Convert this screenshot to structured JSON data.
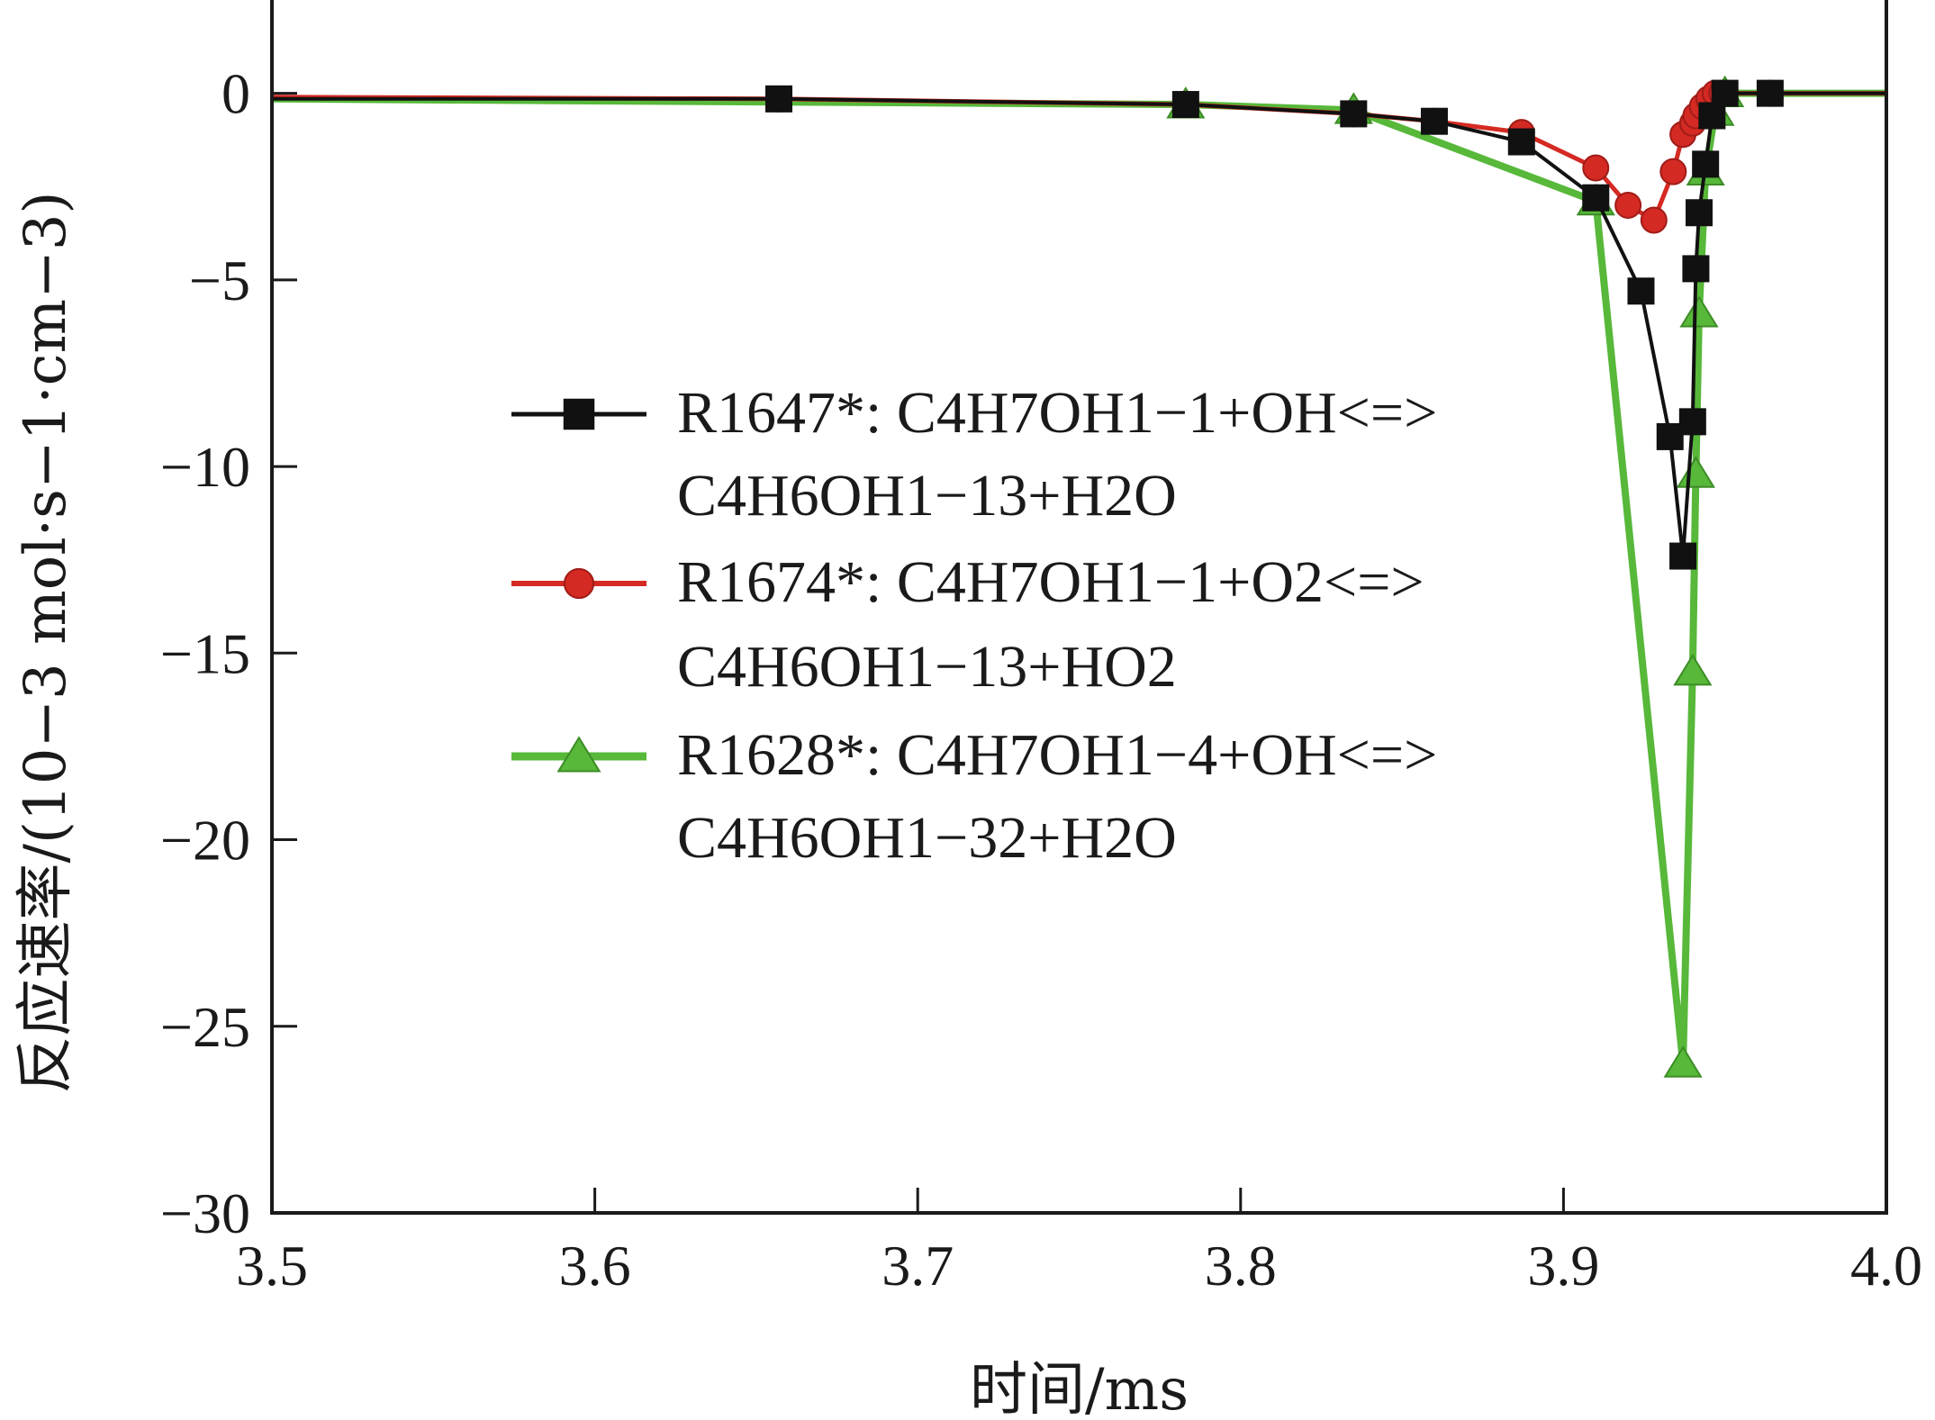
{
  "chart_data": {
    "type": "line",
    "title": "",
    "xlabel": "时间/ms",
    "ylabel": "反应速率/(10−3 mol·s−1·cm−3)",
    "xlim": [
      3.5,
      4.0
    ],
    "ylim": [
      -30,
      2.5
    ],
    "xticks": [
      3.5,
      3.6,
      3.7,
      3.8,
      3.9,
      4.0
    ],
    "xtick_labels": [
      "3.5",
      "3.6",
      "3.7",
      "3.8",
      "3.9",
      "4.0"
    ],
    "yticks": [
      0,
      -5,
      -10,
      -15,
      -20,
      -25,
      -30
    ],
    "ytick_labels": [
      "0",
      "−5",
      "−10",
      "−15",
      "−20",
      "−25",
      "−30"
    ],
    "grid": false,
    "legend_position": "center",
    "series": [
      {
        "name": "R1647*: C4H7OH1−1+OH<=> C4H6OH1−13+H2O",
        "legend_line1": "R1647*: C4H7OH1−1+OH<=>",
        "legend_line2": "C4H6OH1−13+H2O",
        "color": "#111111",
        "marker": "square",
        "x": [
          3.5,
          3.657,
          3.783,
          3.835,
          3.86,
          3.887,
          3.91,
          3.924,
          3.933,
          3.937,
          3.94,
          3.941,
          3.942,
          3.944,
          3.946,
          3.95,
          3.964,
          4.0
        ],
        "y": [
          -0.15,
          -0.15,
          -0.3,
          -0.55,
          -0.75,
          -1.3,
          -2.8,
          -5.3,
          -9.2,
          -12.4,
          -8.8,
          -4.7,
          -3.2,
          -1.9,
          -0.6,
          0.0,
          0.0,
          0.0
        ]
      },
      {
        "name": "R1674*: C4H7OH1−1+O2<=> C4H6OH1−13+HO2",
        "legend_line1": "R1674*: C4H7OH1−1+O2<=>",
        "legend_line2": "C4H6OH1−13+HO2",
        "color": "#d42a23",
        "marker": "circle",
        "x": [
          3.5,
          3.657,
          3.783,
          3.835,
          3.86,
          3.887,
          3.91,
          3.92,
          3.928,
          3.934,
          3.937,
          3.94,
          3.941,
          3.943,
          3.945,
          3.947,
          3.949,
          3.964,
          4.0
        ],
        "y": [
          -0.1,
          -0.15,
          -0.3,
          -0.55,
          -0.75,
          -1.05,
          -2.0,
          -3.0,
          -3.4,
          -2.1,
          -1.1,
          -0.8,
          -0.6,
          -0.35,
          -0.15,
          0.0,
          0.0,
          0.0,
          0.0
        ]
      },
      {
        "name": "R1628*: C4H7OH1−4+OH<=> C4H6OH1−32+H2O",
        "legend_line1": "R1628*: C4H7OH1−4+OH<=>",
        "legend_line2": "C4H6OH1−32+H2O",
        "color": "#57b83a",
        "marker": "triangle",
        "x": [
          3.5,
          3.783,
          3.835,
          3.91,
          3.937,
          3.94,
          3.941,
          3.942,
          3.944,
          3.947,
          3.95,
          4.0
        ],
        "y": [
          -0.15,
          -0.3,
          -0.45,
          -2.9,
          -26.0,
          -15.5,
          -10.2,
          -5.9,
          -2.1,
          -0.5,
          0.0,
          0.0
        ]
      }
    ]
  }
}
